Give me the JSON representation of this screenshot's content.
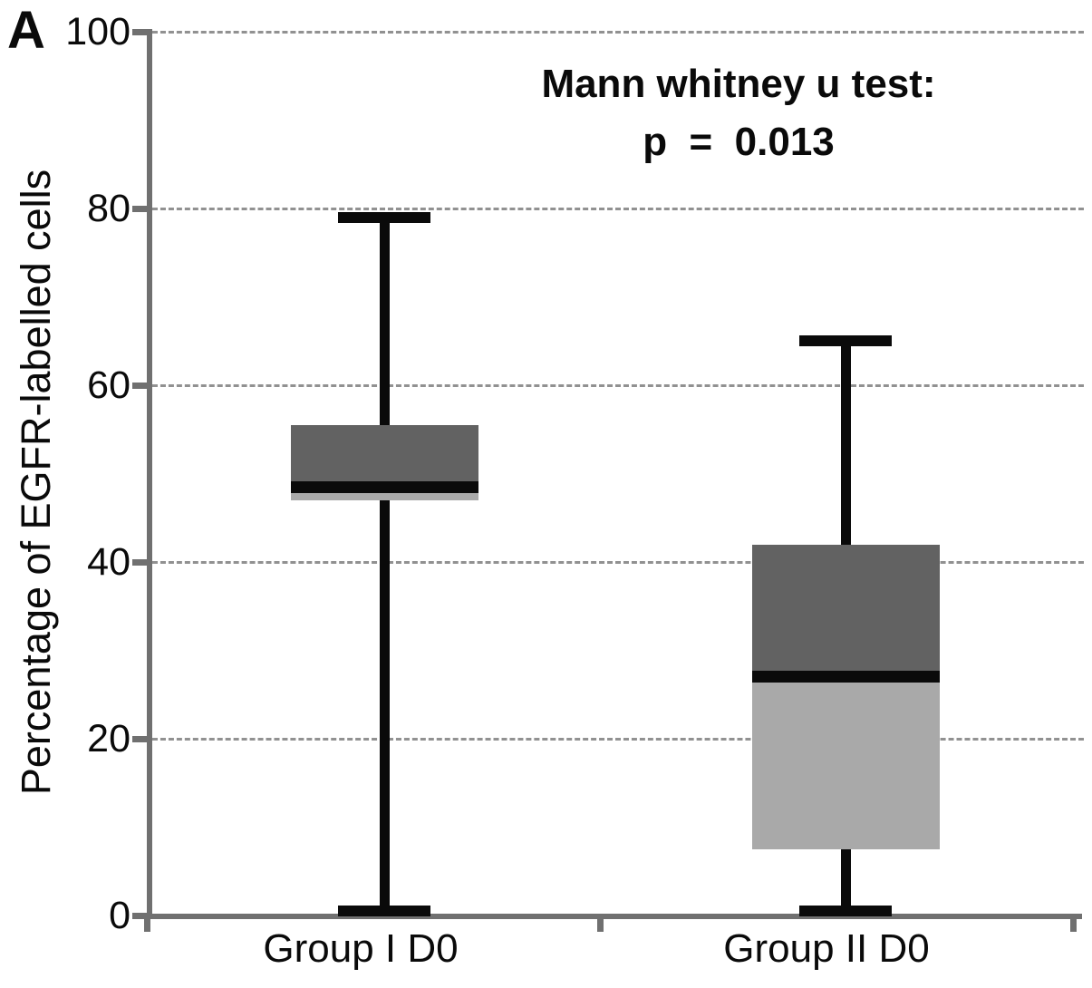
{
  "panel_label": "A",
  "annotation": {
    "line1": "Mann whitney u test:",
    "line2": "p  =  0.013"
  },
  "colors": {
    "box_upper_fill": "#626262",
    "box_lower_fill": "#a9a9a9",
    "whisker_and_median": "#0a0a0a",
    "axis": "#707070",
    "gridline": "#919191",
    "text": "#0a0a0a",
    "background": "#ffffff"
  },
  "chart_data": {
    "type": "box",
    "title": "Mann whitney u test:",
    "subtitle": "p  =  0.013",
    "xlabel": "",
    "ylabel": "Percentage of EGFR-labelled cells",
    "ylim": [
      0,
      100
    ],
    "yticks": [
      0,
      20,
      40,
      60,
      80,
      100
    ],
    "grid": "horizontal-dashed",
    "legend": "none",
    "categories": [
      "Group I D0",
      "Group II D0"
    ],
    "series": [
      {
        "name": "Group I D0",
        "min": 0.5,
        "q1": 47,
        "median": 48.5,
        "q3": 55.5,
        "max": 79
      },
      {
        "name": "Group II D0",
        "min": 0.5,
        "q1": 7.5,
        "median": 27,
        "q3": 42,
        "max": 65
      }
    ],
    "box_style": "upper half dark gray (median to Q3), lower half light gray (Q1 to median), thick black median band, black whiskers with end caps"
  }
}
